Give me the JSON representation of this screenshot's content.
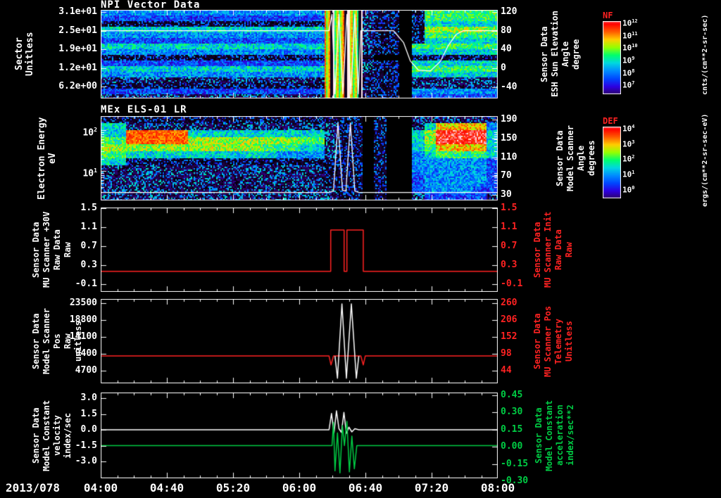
{
  "colors": {
    "background": "#000000",
    "axis": "#ffffff",
    "red": "#ff2222",
    "green": "#00cc44",
    "white": "#ffffff"
  },
  "x_axis": {
    "date_label": "2013/078",
    "t_start": 4,
    "t_end": 8,
    "ticks": [
      "04:00",
      "04:40",
      "05:20",
      "06:00",
      "06:40",
      "07:20",
      "08:00"
    ]
  },
  "chart_data": [
    {
      "id": "npi",
      "type": "heatmap",
      "title": "NPI Vector Data",
      "left_label_lines": [
        "Sector",
        "Unitless"
      ],
      "right_label_lines": [
        "Sensor Data",
        "ESH Sun Elevation",
        "Angle",
        "degree"
      ],
      "left_ticks": {
        "labels": [
          "3.1e+01",
          "2.5e+01",
          "1.9e+01",
          "1.2e+01",
          "6.2e+00"
        ],
        "frac": [
          0.025,
          0.235,
          0.445,
          0.655,
          0.865
        ]
      },
      "right_ticks": {
        "labels": [
          "120",
          "80",
          "40",
          "0",
          "-40"
        ],
        "frac": [
          0.025,
          0.236,
          0.448,
          0.661,
          0.873
        ],
        "color": "#ffffff"
      },
      "grid": {
        "time_cols": 32,
        "pulse_cols": [
          18,
          21
        ],
        "values": [
          "44444444444444444477721101666666",
          "33333333333333333377721101666666",
          "11111111111111111177721101555555",
          "55555555555555555577721101777777",
          "44444444444444444477721101666666",
          "33333333333333333377721101555555",
          "55555555555555555577721106666666",
          "44444444444444444477721105555555",
          "11111111111111111166610001111111",
          "33333333333333333377721105555555",
          "55555555555555555577721106666666",
          "44444444444444444477721105555555",
          "22222222222222222266611102222222",
          "11111111111111111166611102222222",
          "33333333333333333377721104444444",
          "22222222222222222266611103333333"
        ]
      },
      "overlay": {
        "color": "#ffffff",
        "range": [
          124.7,
          -64.9
        ],
        "points": [
          [
            4.0,
            80
          ],
          [
            6.3,
            80
          ],
          [
            6.33,
            115
          ],
          [
            6.36,
            -55
          ],
          [
            6.4,
            115
          ],
          [
            6.44,
            -55
          ],
          [
            6.48,
            115
          ],
          [
            6.52,
            -55
          ],
          [
            6.56,
            115
          ],
          [
            6.595,
            -55
          ],
          [
            6.62,
            80
          ],
          [
            6.95,
            80
          ],
          [
            7.05,
            55
          ],
          [
            7.12,
            15
          ],
          [
            7.2,
            -4
          ],
          [
            7.32,
            -6
          ],
          [
            7.42,
            14
          ],
          [
            7.5,
            48
          ],
          [
            7.58,
            72
          ],
          [
            7.65,
            80
          ],
          [
            8.0,
            80
          ]
        ]
      },
      "colorbar": {
        "label": "NF",
        "units": "cnts/(cm**2-sr-sec)",
        "ticks": [
          "10^12",
          "10^11",
          "10^10",
          "10^9",
          "10^8",
          "10^7"
        ]
      }
    },
    {
      "id": "els",
      "type": "heatmap",
      "title": "MEx ELS-01 LR",
      "left_label_lines": [
        "Electron Energy",
        "eV"
      ],
      "right_label_lines": [
        "Sensor Data",
        "Model Scanner",
        "Angle",
        "degrees"
      ],
      "left_ticks": {
        "labels": [
          "10^2",
          "10^1"
        ],
        "frac": [
          0.167,
          0.65
        ],
        "log_minor": true
      },
      "right_ticks": {
        "labels": [
          "190",
          "150",
          "110",
          "70",
          "30"
        ],
        "frac": [
          0.042,
          0.267,
          0.492,
          0.708,
          0.933
        ],
        "color": "#ffffff"
      },
      "grid": {
        "time_cols": 32,
        "values": [
          "11111111111111111111101002222221",
          "55222222222222222221101002588884",
          "559999955555555555211010057AAAA5",
          "669999977777777766211010057AAAA5",
          "77777777777776665521101005688885",
          "66555555555555444421101004566665",
          "55111111111111111111101004444443",
          "22222222222222222211101004444443",
          "22222222222222222211101003444443",
          "22222222222222222211101003444443",
          "22222222222222222221101003444433",
          "22222222222222222221101002333332"
        ]
      },
      "overlay": {
        "color": "#ffffff",
        "range": [
          197.5,
          18.1
        ],
        "points": [
          [
            4.0,
            35
          ],
          [
            6.3,
            35
          ],
          [
            6.345,
            38
          ],
          [
            6.39,
            183
          ],
          [
            6.435,
            40
          ],
          [
            6.47,
            38
          ],
          [
            6.515,
            183
          ],
          [
            6.56,
            38
          ],
          [
            6.6,
            35
          ],
          [
            8.0,
            35
          ]
        ]
      },
      "colorbar": {
        "label": "DEF",
        "units": "ergs/(cm**2-sr-sec-eV)",
        "ticks": [
          "10^4",
          "10^3",
          "10^2",
          "10^1",
          "10^0"
        ]
      }
    },
    {
      "id": "scanner-raw",
      "type": "line",
      "left_label_lines": [
        "Sensor Data",
        "MU Scanner +30V",
        "Raw Data",
        "Raw"
      ],
      "right_label_lines": [
        "Sensor Data",
        "MU Scanner Init",
        "Raw Data",
        "Raw"
      ],
      "left_ticks": {
        "labels": [
          "1.5",
          "1.1",
          "0.7",
          "0.3",
          "-0.1"
        ],
        "frac": [
          0.008,
          0.233,
          0.458,
          0.683,
          0.908
        ]
      },
      "right_ticks": {
        "labels": [
          "1.5",
          "1.1",
          "0.7",
          "0.3",
          "-0.1"
        ],
        "frac": [
          0.008,
          0.233,
          0.458,
          0.683,
          0.908
        ],
        "color": "#ff2222"
      },
      "value_range": [
        1.514,
        -0.263
      ],
      "series": [
        {
          "name": "MU Scanner Init Raw",
          "color": "#ff2222",
          "points": [
            [
              4.0,
              0.17
            ],
            [
              6.317,
              0.17
            ],
            [
              6.317,
              1.04
            ],
            [
              6.452,
              1.04
            ],
            [
              6.452,
              0.17
            ],
            [
              6.48,
              0.17
            ],
            [
              6.48,
              1.04
            ],
            [
              6.645,
              1.04
            ],
            [
              6.645,
              0.17
            ],
            [
              8.0,
              0.17
            ]
          ]
        }
      ]
    },
    {
      "id": "scanner-pos",
      "type": "line",
      "left_label_lines": [
        "Sensor Data",
        "Model Scanner Pos",
        "Raw",
        "unitless"
      ],
      "right_label_lines": [
        "Sensor Data",
        "MU Scanner Pos",
        "Telemetry",
        "Unitless"
      ],
      "left_ticks": {
        "labels": [
          "23500",
          "18800",
          "14100",
          "9400",
          "4700"
        ],
        "frac": [
          0.05,
          0.25,
          0.45,
          0.65,
          0.85
        ]
      },
      "right_ticks": {
        "labels": [
          "260",
          "206",
          "152",
          "98",
          "44"
        ],
        "frac": [
          0.05,
          0.25,
          0.45,
          0.65,
          0.85
        ],
        "color": "#ff2222"
      },
      "value_range": [
        24675,
        1175
      ],
      "series": [
        {
          "name": "MU Scanner Pos Telemetry",
          "color": "#ff2222",
          "points": [
            [
              4.0,
              8800
            ],
            [
              6.3,
              8800
            ],
            [
              6.32,
              6300
            ],
            [
              6.345,
              8800
            ],
            [
              6.62,
              8800
            ],
            [
              6.645,
              6300
            ],
            [
              6.665,
              8800
            ],
            [
              8.0,
              8800
            ]
          ]
        },
        {
          "name": "Model Scanner Pos Raw",
          "color": "#ffffff",
          "points": [
            [
              6.36,
              8800
            ],
            [
              6.385,
              2600
            ],
            [
              6.43,
              23300
            ],
            [
              6.475,
              2600
            ],
            [
              6.525,
              23300
            ],
            [
              6.575,
              2600
            ],
            [
              6.6,
              8800
            ]
          ]
        }
      ]
    },
    {
      "id": "model-constant",
      "type": "line",
      "left_label_lines": [
        "Sensor Data",
        "Model Constant",
        "velocity",
        "index/sec"
      ],
      "right_label_lines": [
        "Sensor Data",
        "Model Constant",
        "acceleration",
        "index/sec**2"
      ],
      "left_ticks": {
        "labels": [
          "3.0",
          "1.5",
          "0.0",
          "-1.5",
          "-3.0"
        ],
        "frac": [
          0.066,
          0.25,
          0.434,
          0.619,
          0.803
        ]
      },
      "right_ticks": {
        "labels": [
          "0.45",
          "0.30",
          "0.15",
          "0.00",
          "-0.15",
          "-0.30"
        ],
        "frac": [
          0.033,
          0.233,
          0.433,
          0.633,
          0.833,
          1.033
        ],
        "color": "#00cc44"
      },
      "value_range": [
        3.54,
        -4.61
      ],
      "series": [
        {
          "name": "Model Constant velocity",
          "color": "#ffffff",
          "points": [
            [
              4.0,
              0.0
            ],
            [
              6.3,
              0.0
            ],
            [
              6.325,
              1.55
            ],
            [
              6.35,
              -0.3
            ],
            [
              6.375,
              1.8
            ],
            [
              6.4,
              0.1
            ],
            [
              6.425,
              -0.25
            ],
            [
              6.45,
              1.65
            ],
            [
              6.475,
              -0.35
            ],
            [
              6.5,
              0.25
            ],
            [
              6.53,
              -0.2
            ],
            [
              6.56,
              0.1
            ],
            [
              6.6,
              0.0
            ],
            [
              8.0,
              0.0
            ]
          ]
        },
        {
          "name": "Model Constant acceleration",
          "color": "#00cc44",
          "points": [
            [
              4.0,
              -1.5
            ],
            [
              6.33,
              -1.5
            ],
            [
              6.345,
              0.7
            ],
            [
              6.36,
              -3.9
            ],
            [
              6.385,
              -0.3
            ],
            [
              6.41,
              -4.1
            ],
            [
              6.435,
              0.4
            ],
            [
              6.455,
              -1.5
            ],
            [
              6.48,
              0.8
            ],
            [
              6.505,
              -4.0
            ],
            [
              6.53,
              -0.6
            ],
            [
              6.555,
              -3.7
            ],
            [
              6.58,
              -1.5
            ],
            [
              8.0,
              -1.5
            ]
          ]
        }
      ]
    }
  ]
}
